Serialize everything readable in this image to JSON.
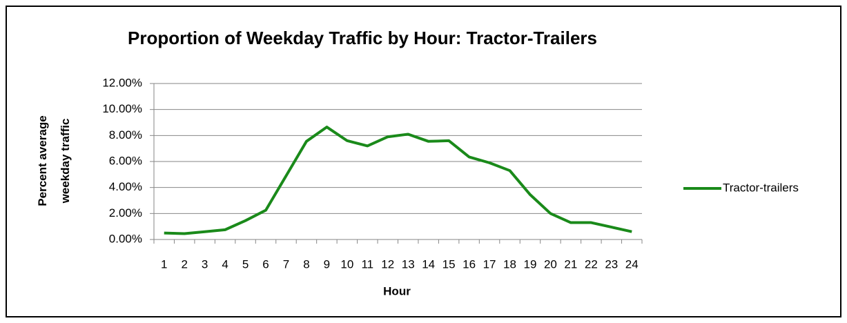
{
  "chart_data": {
    "type": "line",
    "title": "Proportion of Weekday Traffic by Hour: Tractor-Trailers",
    "xlabel": "Hour",
    "ylabel": "Percent average weekday traffic",
    "categories": [
      "1",
      "2",
      "3",
      "4",
      "5",
      "6",
      "7",
      "8",
      "9",
      "10",
      "11",
      "12",
      "13",
      "14",
      "15",
      "16",
      "17",
      "18",
      "19",
      "20",
      "21",
      "22",
      "23",
      "24"
    ],
    "series": [
      {
        "name": "Tractor-trailers",
        "color": "#1a8a1a",
        "values": [
          0.5,
          0.45,
          0.6,
          0.75,
          1.45,
          2.25,
          4.9,
          7.55,
          8.65,
          7.6,
          7.2,
          7.9,
          8.1,
          7.55,
          7.6,
          6.35,
          5.9,
          5.3,
          3.45,
          2.0,
          1.3,
          1.3,
          0.95,
          0.6
        ]
      }
    ],
    "ylim": [
      0,
      12
    ],
    "yticks": [
      {
        "value": 0,
        "label": "0.00%"
      },
      {
        "value": 2,
        "label": "2.00%"
      },
      {
        "value": 4,
        "label": "4.00%"
      },
      {
        "value": 6,
        "label": "6.00%"
      },
      {
        "value": 8,
        "label": "8.00%"
      },
      {
        "value": 10,
        "label": "10.00%"
      },
      {
        "value": 12,
        "label": "12.00%"
      }
    ],
    "grid": true,
    "legend": "right"
  }
}
